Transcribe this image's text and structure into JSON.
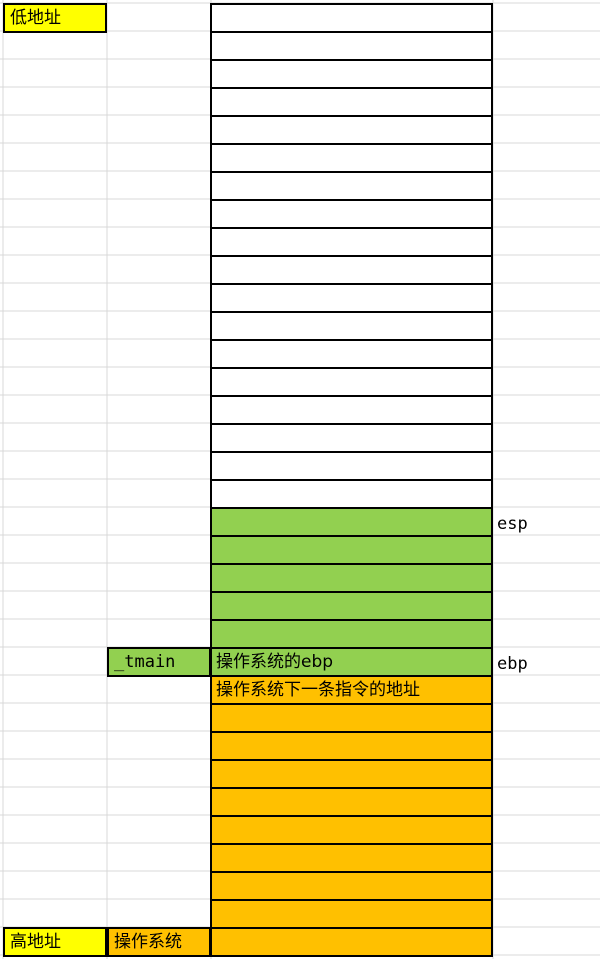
{
  "labels": {
    "low_address": "低地址",
    "high_address": "高地址",
    "os_caller": "操作系统",
    "tmain": "_tmain",
    "esp": "esp",
    "ebp": "ebp"
  },
  "stack": {
    "slots": [
      {
        "text": "",
        "region": "free"
      },
      {
        "text": "",
        "region": "free"
      },
      {
        "text": "",
        "region": "free"
      },
      {
        "text": "",
        "region": "free"
      },
      {
        "text": "",
        "region": "free"
      },
      {
        "text": "",
        "region": "free"
      },
      {
        "text": "",
        "region": "free"
      },
      {
        "text": "",
        "region": "free"
      },
      {
        "text": "",
        "region": "free"
      },
      {
        "text": "",
        "region": "free"
      },
      {
        "text": "",
        "region": "free"
      },
      {
        "text": "",
        "region": "free"
      },
      {
        "text": "",
        "region": "free"
      },
      {
        "text": "",
        "region": "free"
      },
      {
        "text": "",
        "region": "free"
      },
      {
        "text": "",
        "region": "free"
      },
      {
        "text": "",
        "region": "free"
      },
      {
        "text": "",
        "region": "free"
      },
      {
        "text": "",
        "region": "tmain"
      },
      {
        "text": "",
        "region": "tmain"
      },
      {
        "text": "",
        "region": "tmain"
      },
      {
        "text": "",
        "region": "tmain"
      },
      {
        "text": "",
        "region": "tmain"
      },
      {
        "text": "操作系统的ebp",
        "region": "tmain"
      },
      {
        "text": "操作系统下一条指令的地址",
        "region": "os"
      },
      {
        "text": "",
        "region": "os"
      },
      {
        "text": "",
        "region": "os"
      },
      {
        "text": "",
        "region": "os"
      },
      {
        "text": "",
        "region": "os"
      },
      {
        "text": "",
        "region": "os"
      },
      {
        "text": "",
        "region": "os"
      },
      {
        "text": "",
        "region": "os"
      },
      {
        "text": "",
        "region": "os"
      },
      {
        "text": "",
        "region": "os"
      }
    ]
  },
  "colors": {
    "free": "#ffffff",
    "tmain": "#92d050",
    "os": "#ffc000",
    "label_highlight": "#ffff00",
    "gridline": "#d9d9d9"
  }
}
